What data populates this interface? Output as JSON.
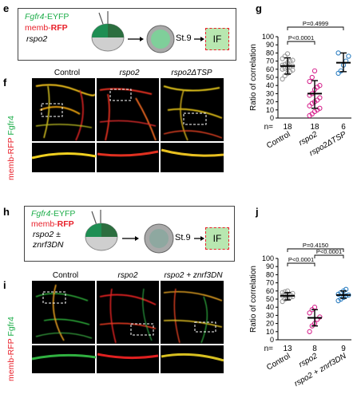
{
  "panel_e": {
    "label": "e",
    "line1_gene": "Fgfr4",
    "line1_suffix": "-EYFP",
    "line2_prefix": "memb-",
    "line2_red": "RFP",
    "line3": "rspo2",
    "stage": "St.9",
    "assay": "IF"
  },
  "panel_f": {
    "label": "f",
    "columns": [
      "Control",
      "rspo2",
      "rspo2ΔTSP"
    ],
    "side_label_red": "memb-RFP",
    "side_label_green": "Fgfr4"
  },
  "panel_h": {
    "label": "h",
    "line1_gene": "Fgfr4",
    "line1_suffix": "-EYFP",
    "line2_prefix": "memb-",
    "line2_red": "RFP",
    "line3": "rspo2 ±",
    "line4": "znrf3DN",
    "stage": "St.9",
    "assay": "IF"
  },
  "panel_i": {
    "label": "i",
    "columns": [
      "Control",
      "rspo2",
      "rspo2 + znrf3DN"
    ],
    "side_label_red": "memb-RFP",
    "side_label_green": "Fgfr4"
  },
  "chart_data": [
    {
      "panel": "g",
      "type": "scatter",
      "ylabel": "Ratio of correlation",
      "ylim": [
        0,
        100
      ],
      "yticks": [
        0,
        10,
        20,
        30,
        40,
        50,
        60,
        70,
        80,
        90,
        100
      ],
      "categories": [
        "Control",
        "rspo2",
        "rspo2ΔTSP"
      ],
      "n_label": "n=",
      "n_values": [
        "18",
        "18",
        "6"
      ],
      "colors": [
        "#9a9a9a",
        "#d6258e",
        "#2f7fc1"
      ],
      "means": [
        64,
        30,
        68
      ],
      "sd_low": [
        54,
        12,
        57
      ],
      "sd_high": [
        74,
        46,
        80
      ],
      "points": [
        [
          48,
          52,
          55,
          57,
          59,
          60,
          61,
          62,
          63,
          64,
          65,
          66,
          68,
          70,
          71,
          73,
          76,
          79
        ],
        [
          3,
          5,
          8,
          10,
          12,
          15,
          18,
          20,
          22,
          25,
          28,
          30,
          35,
          38,
          40,
          45,
          50,
          58
        ],
        [
          55,
          58,
          65,
          70,
          76,
          80
        ]
      ],
      "brackets": [
        {
          "from": 0,
          "to": 1,
          "label": "P<0.0001"
        },
        {
          "from": 0,
          "to": 2,
          "label": "P=0.4999"
        }
      ]
    },
    {
      "panel": "j",
      "type": "scatter",
      "ylabel": "Ratio of correlation",
      "ylim": [
        0,
        100
      ],
      "yticks": [
        0,
        10,
        20,
        30,
        40,
        50,
        60,
        70,
        80,
        90,
        100
      ],
      "categories": [
        "Control",
        "rspo2",
        "rspo2 + znrf3DN"
      ],
      "n_label": "n=",
      "n_values": [
        "13",
        "8",
        "9"
      ],
      "colors": [
        "#9a9a9a",
        "#d6258e",
        "#2f7fc1"
      ],
      "means": [
        54,
        27,
        55
      ],
      "sd_low": [
        49,
        17,
        51
      ],
      "sd_high": [
        58,
        37,
        60
      ],
      "points": [
        [
          47,
          50,
          51,
          52,
          53,
          54,
          54,
          55,
          56,
          57,
          58,
          59,
          60
        ],
        [
          10,
          17,
          20,
          25,
          28,
          33,
          37,
          40
        ],
        [
          48,
          50,
          52,
          54,
          55,
          56,
          58,
          60,
          62
        ]
      ],
      "brackets": [
        {
          "from": 0,
          "to": 1,
          "label": "P<0.0001"
        },
        {
          "from": 1,
          "to": 2,
          "label": "P<0.0001"
        },
        {
          "from": 0,
          "to": 2,
          "label": "P=0.4150"
        }
      ]
    }
  ]
}
